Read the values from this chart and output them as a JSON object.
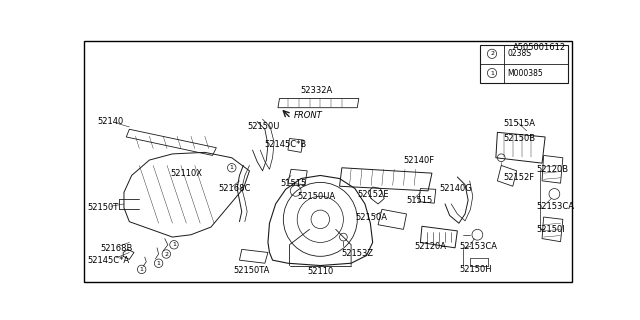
{
  "bg_color": "#ffffff",
  "border_color": "#000000",
  "line_color": "#1a1a1a",
  "text_color": "#000000",
  "fig_width": 6.4,
  "fig_height": 3.2,
  "dpi": 100,
  "legend_items": [
    {
      "symbol": "1",
      "text": "M000385"
    },
    {
      "symbol": "2",
      "text": "0238S"
    }
  ],
  "footer_text": "A505001612"
}
